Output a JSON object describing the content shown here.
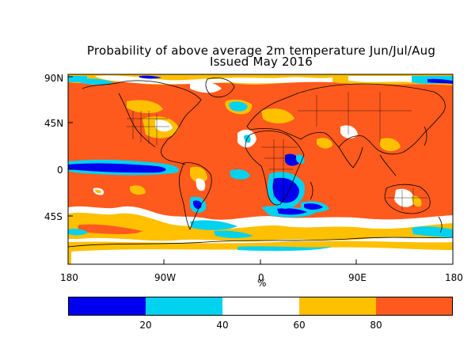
{
  "title": {
    "line1": "Probability of above average 2m temperature Jun/Jul/Aug",
    "line2": "Issued May 2016"
  },
  "map": {
    "projection": "equirectangular",
    "lat_labels": [
      "90N",
      "45N",
      "0",
      "45S"
    ],
    "lon_labels": [
      "180",
      "90W",
      "0",
      "90E",
      "180"
    ],
    "unit_label": "%",
    "ocean_colors": {
      "above_80": "#ff5a1e",
      "60_80": "#ffc000",
      "40_60": "#ffffff",
      "20_40": "#00d2f0",
      "below_20": "#0000ee"
    },
    "land_outline_color": "#000000"
  },
  "colorbar": {
    "colors": [
      "#0000ee",
      "#00d2f0",
      "#ffffff",
      "#ffc000",
      "#ff5a1e"
    ],
    "ticks": [
      "20",
      "40",
      "60",
      "80"
    ]
  }
}
